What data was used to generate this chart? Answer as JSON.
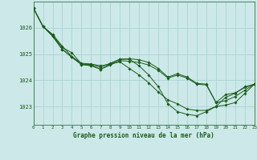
{
  "title": "Graphe pression niveau de la mer (hPa)",
  "bg_color": "#cce8e8",
  "line_color": "#1a5c1a",
  "grid_color": "#aad4d4",
  "ylim": [
    1022.3,
    1027.0
  ],
  "xlim": [
    0,
    23
  ],
  "yticks": [
    1023,
    1024,
    1025,
    1026
  ],
  "xticks": [
    0,
    1,
    2,
    3,
    4,
    5,
    6,
    7,
    8,
    9,
    10,
    11,
    12,
    13,
    14,
    15,
    16,
    17,
    18,
    19,
    20,
    21,
    22,
    23
  ],
  "series": [
    [
      1026.75,
      1026.05,
      1025.75,
      1025.3,
      1024.9,
      1024.65,
      1024.62,
      1024.55,
      1024.62,
      1024.7,
      1024.45,
      1024.2,
      1023.9,
      1023.55,
      1023.25,
      1023.1,
      1022.9,
      1022.85,
      1022.85,
      1023.0,
      1023.35,
      1023.5,
      1023.75,
      1023.85
    ],
    [
      1026.75,
      1026.05,
      1025.72,
      1025.25,
      1025.05,
      1024.62,
      1024.6,
      1024.5,
      1024.65,
      1024.8,
      1024.8,
      1024.55,
      1024.2,
      1023.75,
      1023.1,
      1022.8,
      1022.7,
      1022.65,
      1022.8,
      1023.0,
      1023.05,
      1023.15,
      1023.5,
      1023.85
    ],
    [
      1026.75,
      1026.05,
      1025.68,
      1025.18,
      1024.88,
      1024.6,
      1024.57,
      1024.42,
      1024.58,
      1024.75,
      1024.72,
      1024.68,
      1024.58,
      1024.38,
      1024.08,
      1024.2,
      1024.08,
      1023.85,
      1023.82,
      1023.15,
      1023.45,
      1023.52,
      1023.72,
      1023.85
    ],
    [
      1026.75,
      1026.05,
      1025.68,
      1025.18,
      1024.88,
      1024.6,
      1024.55,
      1024.42,
      1024.62,
      1024.8,
      1024.82,
      1024.78,
      1024.68,
      1024.45,
      1024.12,
      1024.25,
      1024.12,
      1023.88,
      1023.85,
      1023.15,
      1023.22,
      1023.38,
      1023.62,
      1023.85
    ]
  ]
}
